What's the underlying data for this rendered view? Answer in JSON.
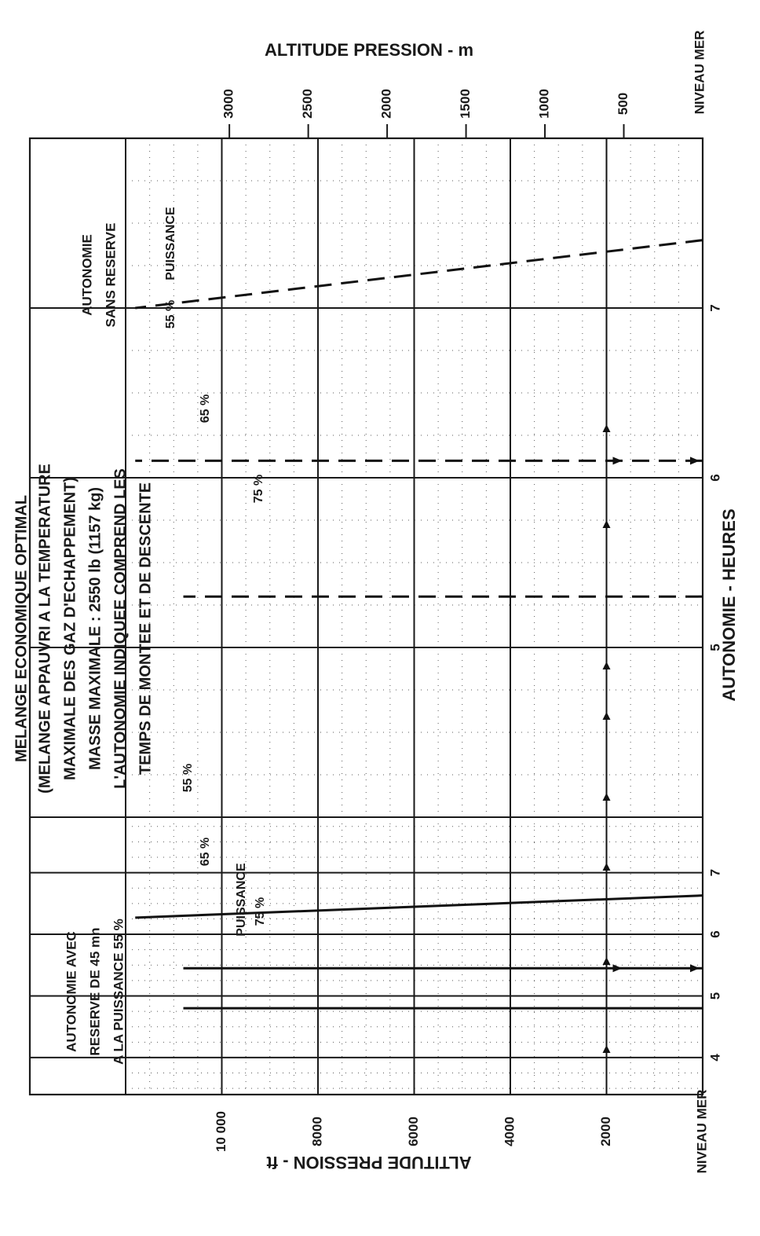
{
  "chart_data": {
    "type": "line",
    "title": "MELANGE ECONOMIQUE OPTIMAL",
    "notes": [
      "(MELANGE APPAUVRI A LA TEMPERATURE",
      "MAXIMALE DES GAZ D'ECHAPPEMENT)",
      "MASSE MAXIMALE : 2550 lb (1157 kg)",
      "L'AUTONOMIE INDIQUEE COMPREND LES",
      "TEMPS DE MONTEE ET DE DESCENTE"
    ],
    "xlabel": "AUTONOMIE - HEURES",
    "ylabel_left": "ALTITUDE PRESSION - ft",
    "ylabel_right": "ALTITUDE PRESSION - m",
    "sea_level_label": "NIVEAU MER",
    "ft_ticks": [
      "10 000",
      "8000",
      "6000",
      "4000",
      "2000"
    ],
    "ft_tick_values": [
      10000,
      8000,
      6000,
      4000,
      2000
    ],
    "m_ticks": [
      "3000",
      "2500",
      "2000",
      "1500",
      "1000",
      "500"
    ],
    "m_tick_values": [
      3000,
      2500,
      2000,
      1500,
      1000,
      500
    ],
    "ylim_ft": [
      0,
      12000
    ],
    "grid": true,
    "panels": [
      {
        "name": "reserve_45min",
        "label_lines": [
          "AUTONOMIE AVEC",
          "RESERVE DE 45 mn",
          "A LA PUISSANCE 55 %"
        ],
        "x_ticks": [
          "4",
          "5",
          "6",
          "7"
        ],
        "x_tick_values": [
          4,
          5,
          6,
          7
        ],
        "xlim": [
          3.4,
          7.9
        ],
        "series": [
          {
            "name": "75 %",
            "x": [
              4.8,
              4.8
            ],
            "y": [
              0,
              10800
            ]
          },
          {
            "name": "65 %",
            "x": [
              5.45,
              5.45
            ],
            "y": [
              0,
              10800
            ]
          },
          {
            "name": "55 %",
            "x": [
              6.63,
              6.27
            ],
            "y": [
              0,
              11800
            ]
          }
        ],
        "labels": [
          "PUISSANCE",
          "75 %",
          "65 %",
          "55 %"
        ]
      },
      {
        "name": "sans_reserve",
        "label_lines": [
          "AUTONOMIE",
          "SANS RESERVE"
        ],
        "x_ticks": [
          "5",
          "6",
          "7"
        ],
        "x_tick_values": [
          5,
          6,
          7
        ],
        "xlim": [
          4.0,
          8.0
        ],
        "series": [
          {
            "name": "75 %",
            "x": [
              5.3,
              5.3
            ],
            "y": [
              0,
              10800
            ]
          },
          {
            "name": "65 %",
            "x": [
              6.1,
              6.1
            ],
            "y": [
              0,
              11800
            ]
          },
          {
            "name": "55 %",
            "x": [
              7.4,
              7.0
            ],
            "y": [
              0,
              11800
            ]
          }
        ],
        "labels": [
          "75 %",
          "65 %",
          "55 %",
          "PUISSANCE"
        ]
      }
    ],
    "example_altitude_ft": 2000
  }
}
